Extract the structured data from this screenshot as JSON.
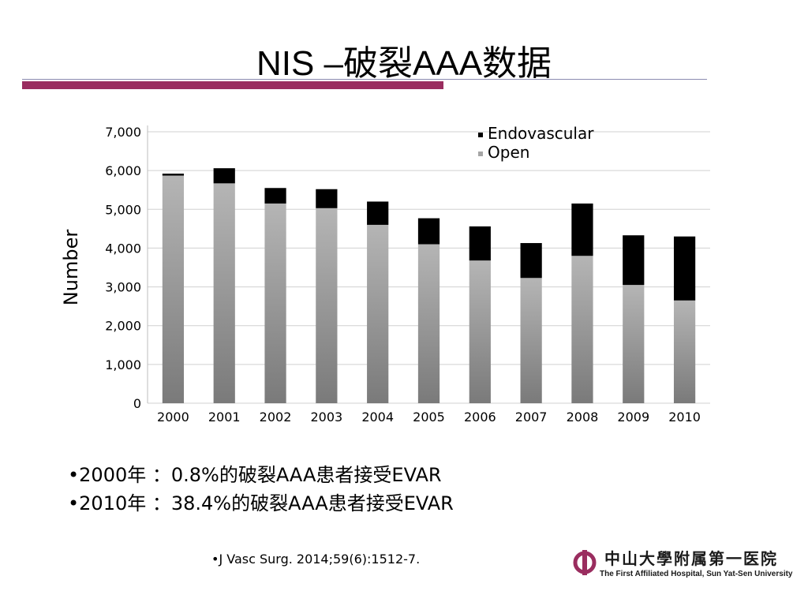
{
  "slide": {
    "title": "NIS –破裂AAA数据"
  },
  "bullets": [
    "•2000年 ：0.8%的破裂AAA患者接受EVAR",
    "•2010年 ：38.4%的破裂AAA患者接受EVAR"
  ],
  "citation": "•J Vasc Surg. 2014;59(6):1512-7.",
  "logo": {
    "chinese_name": "中山大學附属第一医院",
    "english_name": "The First Affiliated Hospital, Sun Yat-Sen University",
    "accent_color": "#9a2d5f"
  },
  "colors": {
    "title_bar": "#9a2d5f",
    "open_series": "#a6a6a6",
    "endovascular_series": "#000000"
  },
  "chart_data": {
    "type": "bar",
    "stacked": true,
    "ylabel": "Number",
    "xlabel": "",
    "ylim": [
      0,
      7000
    ],
    "yticks": [
      0,
      1000,
      2000,
      3000,
      4000,
      5000,
      6000,
      7000
    ],
    "ytick_labels": [
      "0",
      "1,000",
      "2,000",
      "3,000",
      "4,000",
      "5,000",
      "6,000",
      "7,000"
    ],
    "grid": true,
    "legend_position": "top-right",
    "categories": [
      "2000",
      "2001",
      "2002",
      "2003",
      "2004",
      "2005",
      "2006",
      "2007",
      "2008",
      "2009",
      "2010"
    ],
    "series": [
      {
        "name": "Open",
        "color": "#a6a6a6",
        "values": [
          5870,
          5670,
          5150,
          5030,
          4600,
          4100,
          3680,
          3230,
          3800,
          3050,
          2650
        ]
      },
      {
        "name": "Endovascular",
        "color": "#000000",
        "values": [
          50,
          390,
          400,
          490,
          600,
          670,
          880,
          900,
          1350,
          1280,
          1650
        ]
      }
    ]
  }
}
